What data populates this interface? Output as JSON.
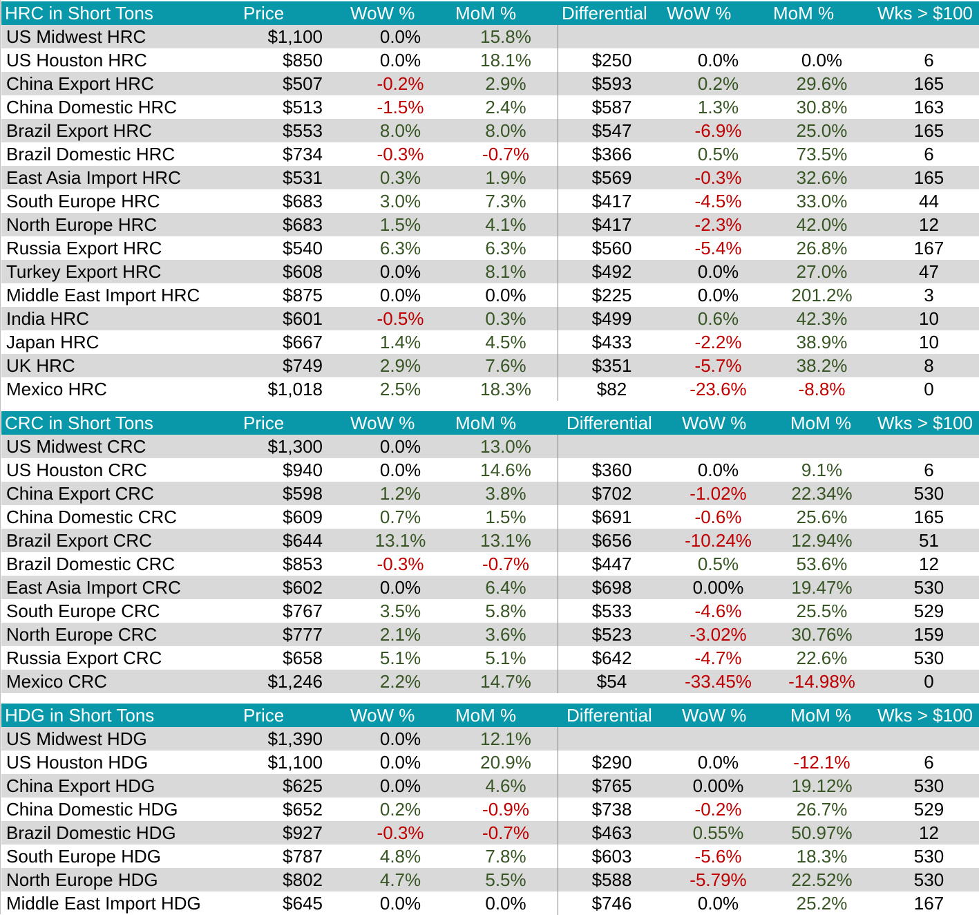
{
  "colors": {
    "header_bg": "#0898aa",
    "header_text": "#ffffff",
    "row_shade": "#d9d9d9",
    "positive": "#375623",
    "negative": "#c00000",
    "neutral": "#000000"
  },
  "sections": [
    {
      "id": "hrc",
      "headers": {
        "name": "HRC in Short Tons",
        "price": "Price",
        "wow": "WoW %",
        "mom": "MoM %",
        "differential": "Differential",
        "diff_wow": "WoW %",
        "diff_mom": "MoM %",
        "weeks": "Wks > $100"
      },
      "rows": [
        {
          "name": "US Midwest HRC",
          "price": "$1,100",
          "wow": "0.0%",
          "mom": "15.8%",
          "differential": "",
          "diff_wow": "",
          "diff_mom": "",
          "weeks": ""
        },
        {
          "name": "US Houston HRC",
          "price": "$850",
          "wow": "0.0%",
          "mom": "18.1%",
          "differential": "$250",
          "diff_wow": "0.0%",
          "diff_mom": "0.0%",
          "weeks": "6"
        },
        {
          "name": "China Export HRC",
          "price": "$507",
          "wow": "-0.2%",
          "mom": "2.9%",
          "differential": "$593",
          "diff_wow": "0.2%",
          "diff_mom": "29.6%",
          "weeks": "165"
        },
        {
          "name": "China Domestic HRC",
          "price": "$513",
          "wow": "-1.5%",
          "mom": "2.4%",
          "differential": "$587",
          "diff_wow": "1.3%",
          "diff_mom": "30.8%",
          "weeks": "163"
        },
        {
          "name": "Brazil Export HRC",
          "price": "$553",
          "wow": "8.0%",
          "mom": "8.0%",
          "differential": "$547",
          "diff_wow": "-6.9%",
          "diff_mom": "25.0%",
          "weeks": "165"
        },
        {
          "name": "Brazil Domestic HRC",
          "price": "$734",
          "wow": "-0.3%",
          "mom": "-0.7%",
          "differential": "$366",
          "diff_wow": "0.5%",
          "diff_mom": "73.5%",
          "weeks": "6"
        },
        {
          "name": "East Asia Import HRC",
          "price": "$531",
          "wow": "0.3%",
          "mom": "1.9%",
          "differential": "$569",
          "diff_wow": "-0.3%",
          "diff_mom": "32.6%",
          "weeks": "165"
        },
        {
          "name": "South Europe HRC",
          "price": "$683",
          "wow": "3.0%",
          "mom": "7.3%",
          "differential": "$417",
          "diff_wow": "-4.5%",
          "diff_mom": "33.0%",
          "weeks": "44"
        },
        {
          "name": "North Europe HRC",
          "price": "$683",
          "wow": "1.5%",
          "mom": "4.1%",
          "differential": "$417",
          "diff_wow": "-2.3%",
          "diff_mom": "42.0%",
          "weeks": "12"
        },
        {
          "name": "Russia Export HRC",
          "price": "$540",
          "wow": "6.3%",
          "mom": "6.3%",
          "differential": "$560",
          "diff_wow": "-5.4%",
          "diff_mom": "26.8%",
          "weeks": "167"
        },
        {
          "name": "Turkey Export HRC",
          "price": "$608",
          "wow": "0.0%",
          "mom": "8.1%",
          "differential": "$492",
          "diff_wow": "0.0%",
          "diff_mom": "27.0%",
          "weeks": "47"
        },
        {
          "name": "Middle East Import HRC",
          "price": "$875",
          "wow": "0.0%",
          "mom": "0.0%",
          "differential": "$225",
          "diff_wow": "0.0%",
          "diff_mom": "201.2%",
          "weeks": "3"
        },
        {
          "name": "India HRC",
          "price": "$601",
          "wow": "-0.5%",
          "mom": "0.3%",
          "differential": "$499",
          "diff_wow": "0.6%",
          "diff_mom": "42.3%",
          "weeks": "10"
        },
        {
          "name": "Japan HRC",
          "price": "$667",
          "wow": "1.4%",
          "mom": "4.5%",
          "differential": "$433",
          "diff_wow": "-2.2%",
          "diff_mom": "38.9%",
          "weeks": "10"
        },
        {
          "name": "UK HRC",
          "price": "$749",
          "wow": "2.9%",
          "mom": "7.6%",
          "differential": "$351",
          "diff_wow": "-5.7%",
          "diff_mom": "38.2%",
          "weeks": "8"
        },
        {
          "name": "Mexico HRC",
          "price": "$1,018",
          "wow": "2.5%",
          "mom": "18.3%",
          "differential": "$82",
          "diff_wow": "-23.6%",
          "diff_mom": "-8.8%",
          "weeks": "0"
        }
      ]
    },
    {
      "id": "crc",
      "headers": {
        "name": "CRC in Short Tons",
        "price": "Price",
        "wow": "WoW %",
        "mom": "MoM %",
        "differential": "Differential",
        "diff_wow": "WoW %",
        "diff_mom": "MoM %",
        "weeks": "Wks > $100"
      },
      "rows": [
        {
          "name": "US Midwest CRC",
          "price": "$1,300",
          "wow": "0.0%",
          "mom": "13.0%",
          "differential": "",
          "diff_wow": "",
          "diff_mom": "",
          "weeks": ""
        },
        {
          "name": "US Houston CRC",
          "price": "$940",
          "wow": "0.0%",
          "mom": "14.6%",
          "differential": "$360",
          "diff_wow": "0.0%",
          "diff_mom": "9.1%",
          "weeks": "6"
        },
        {
          "name": "China Export CRC",
          "price": "$598",
          "wow": "1.2%",
          "mom": "3.8%",
          "differential": "$702",
          "diff_wow": "-1.02%",
          "diff_mom": "22.34%",
          "weeks": "530"
        },
        {
          "name": "China Domestic CRC",
          "price": "$609",
          "wow": "0.7%",
          "mom": "1.5%",
          "differential": "$691",
          "diff_wow": "-0.6%",
          "diff_mom": "25.6%",
          "weeks": "165"
        },
        {
          "name": "Brazil Export CRC",
          "price": "$644",
          "wow": "13.1%",
          "mom": "13.1%",
          "differential": "$656",
          "diff_wow": "-10.24%",
          "diff_mom": "12.94%",
          "weeks": "51"
        },
        {
          "name": "Brazil Domestic CRC",
          "price": "$853",
          "wow": "-0.3%",
          "mom": "-0.7%",
          "differential": "$447",
          "diff_wow": "0.5%",
          "diff_mom": "53.6%",
          "weeks": "12"
        },
        {
          "name": "East Asia Import CRC",
          "price": "$602",
          "wow": "0.0%",
          "mom": "6.4%",
          "differential": "$698",
          "diff_wow": "0.00%",
          "diff_mom": "19.47%",
          "weeks": "530"
        },
        {
          "name": "South Europe CRC",
          "price": "$767",
          "wow": "3.5%",
          "mom": "5.8%",
          "differential": "$533",
          "diff_wow": "-4.6%",
          "diff_mom": "25.5%",
          "weeks": "529"
        },
        {
          "name": "North Europe CRC",
          "price": "$777",
          "wow": "2.1%",
          "mom": "3.6%",
          "differential": "$523",
          "diff_wow": "-3.02%",
          "diff_mom": "30.76%",
          "weeks": "159"
        },
        {
          "name": "Russia Export CRC",
          "price": "$658",
          "wow": "5.1%",
          "mom": "5.1%",
          "differential": "$642",
          "diff_wow": "-4.7%",
          "diff_mom": "22.6%",
          "weeks": "530"
        },
        {
          "name": "Mexico CRC",
          "price": "$1,246",
          "wow": "2.2%",
          "mom": "14.7%",
          "differential": "$54",
          "diff_wow": "-33.45%",
          "diff_mom": "-14.98%",
          "weeks": "0"
        }
      ]
    },
    {
      "id": "hdg",
      "headers": {
        "name": "HDG in Short Tons",
        "price": "Price",
        "wow": "WoW %",
        "mom": "MoM %",
        "differential": "Differential",
        "diff_wow": "WoW %",
        "diff_mom": "MoM %",
        "weeks": "Wks > $100"
      },
      "rows": [
        {
          "name": "US Midwest HDG",
          "price": "$1,390",
          "wow": "0.0%",
          "mom": "12.1%",
          "differential": "",
          "diff_wow": "",
          "diff_mom": "",
          "weeks": ""
        },
        {
          "name": "US Houston HDG",
          "price": "$1,100",
          "wow": "0.0%",
          "mom": "20.9%",
          "differential": "$290",
          "diff_wow": "0.0%",
          "diff_mom": "-12.1%",
          "weeks": "6"
        },
        {
          "name": "China Export HDG",
          "price": "$625",
          "wow": "0.0%",
          "mom": "4.6%",
          "differential": "$765",
          "diff_wow": "0.00%",
          "diff_mom": "19.12%",
          "weeks": "530"
        },
        {
          "name": "China Domestic HDG",
          "price": "$652",
          "wow": "0.2%",
          "mom": "-0.9%",
          "differential": "$738",
          "diff_wow": "-0.2%",
          "diff_mom": "26.7%",
          "weeks": "529"
        },
        {
          "name": "Brazil Domestic HDG",
          "price": "$927",
          "wow": "-0.3%",
          "mom": "-0.7%",
          "differential": "$463",
          "diff_wow": "0.55%",
          "diff_mom": "50.97%",
          "weeks": "12"
        },
        {
          "name": "South Europe HDG",
          "price": "$787",
          "wow": "4.8%",
          "mom": "7.8%",
          "differential": "$603",
          "diff_wow": "-5.6%",
          "diff_mom": "18.3%",
          "weeks": "530"
        },
        {
          "name": "North Europe HDG",
          "price": "$802",
          "wow": "4.7%",
          "mom": "5.5%",
          "differential": "$588",
          "diff_wow": "-5.79%",
          "diff_mom": "22.52%",
          "weeks": "530"
        },
        {
          "name": "Middle East Import HDG",
          "price": "$645",
          "wow": "0.0%",
          "mom": "0.0%",
          "differential": "$746",
          "diff_wow": "0.0%",
          "diff_mom": "25.2%",
          "weeks": "167"
        }
      ]
    }
  ]
}
